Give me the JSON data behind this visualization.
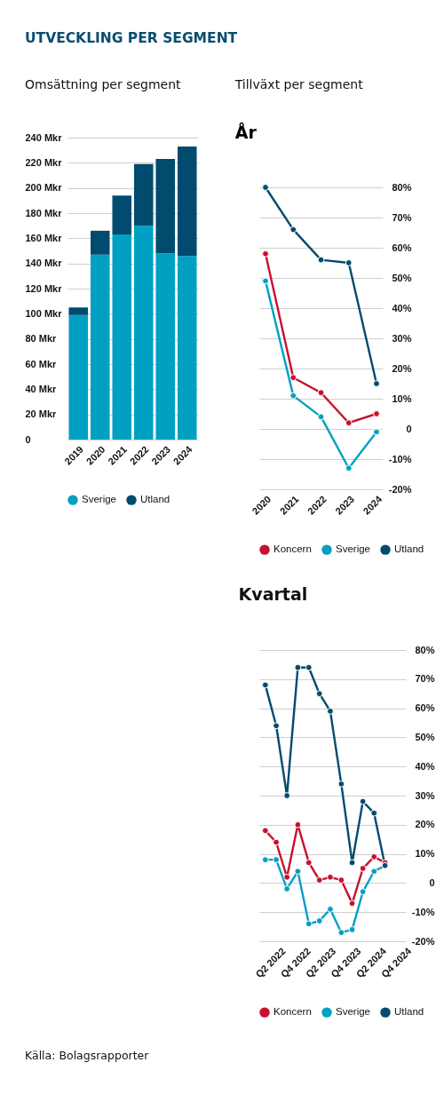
{
  "chart_data": [
    {
      "type": "bar",
      "title": "UTVECKLING PER SEGMENT",
      "subtitle": "Omsättning per segment",
      "categories": [
        "2019",
        "2020",
        "2021",
        "2022",
        "2023",
        "2024"
      ],
      "series": [
        {
          "name": "Sverige",
          "color": "#00a0c3",
          "values": [
            99,
            147,
            163,
            170,
            148,
            146
          ]
        },
        {
          "name": "Utland",
          "color": "#004b6e",
          "values": [
            6,
            19,
            31,
            49,
            75,
            87
          ]
        }
      ],
      "stacked": true,
      "ylim": [
        0,
        240
      ],
      "yticks": [
        0,
        {
          "value": 20,
          "label": "20 Mkr"
        },
        {
          "value": 40,
          "label": "40 Mkr"
        },
        {
          "value": 60,
          "label": "60 Mkr"
        },
        {
          "value": 80,
          "label": "80 Mkr"
        },
        {
          "value": 100,
          "label": "100 Mkr"
        },
        {
          "value": 120,
          "label": "120 Mkr"
        },
        {
          "value": 140,
          "label": "140 Mkr"
        },
        {
          "value": 160,
          "label": "160 Mkr"
        },
        {
          "value": 180,
          "label": "180 Mkr"
        },
        {
          "value": 200,
          "label": "200 Mkr"
        },
        {
          "value": 220,
          "label": "220 Mkr"
        },
        {
          "value": 240,
          "label": "240 Mkr"
        }
      ],
      "grid": "y",
      "legend": "bottom",
      "annotations": [
        "Källa: Bolagsrapporter"
      ]
    },
    {
      "type": "line",
      "title": "Tillväxt per segment",
      "subtitle": "År",
      "categories": [
        "2020",
        "2021",
        "2022",
        "2023",
        "2024"
      ],
      "series": [
        {
          "name": "Koncern",
          "color": "#c8102e",
          "values": [
            58,
            17,
            12,
            2,
            5
          ]
        },
        {
          "name": "Sverige",
          "color": "#00a0c3",
          "values": [
            49,
            11,
            4,
            -13,
            -1
          ]
        },
        {
          "name": "Utland",
          "color": "#004b6e",
          "values": [
            80,
            66,
            56,
            55,
            15
          ]
        }
      ],
      "ylim": [
        -20,
        80
      ],
      "yticks": [
        {
          "value": -20,
          "label": "-20%"
        },
        {
          "value": -10,
          "label": "-10%"
        },
        0,
        {
          "value": 10,
          "label": "10%"
        },
        {
          "value": 20,
          "label": "20%"
        },
        {
          "value": 30,
          "label": "30%"
        },
        {
          "value": 40,
          "label": "40%"
        },
        {
          "value": 50,
          "label": "50%"
        },
        {
          "value": 60,
          "label": "60%"
        },
        {
          "value": 70,
          "label": "70%"
        },
        {
          "value": 80,
          "label": "80%"
        }
      ],
      "grid": "y",
      "legend": "bottom",
      "marker": "circle",
      "line_style": "solid"
    },
    {
      "type": "line",
      "title": "Kvartal",
      "x": [
        "2021-12-15",
        "2022-03-04",
        "2022-05-21",
        "2022-08-08",
        "2022-10-27",
        "2023-01-12",
        "2023-04-01",
        "2023-06-20",
        "2023-09-07",
        "2023-11-24",
        "2024-02-13",
        "2024-05-03"
      ],
      "xlim": [
        "2021-11-01",
        "2024-10-01"
      ],
      "xticks": [
        {
          "value": "2022-04-01",
          "label": "Q2 2022"
        },
        {
          "value": "2022-10-01",
          "label": "Q4 2022"
        },
        {
          "value": "2023-04-01",
          "label": "Q2 2023"
        },
        {
          "value": "2023-10-01",
          "label": "Q4 2023"
        },
        {
          "value": "2024-04-01",
          "label": "Q2 2024"
        },
        {
          "value": "2024-10-01",
          "label": "Q4 2024"
        }
      ],
      "series": [
        {
          "name": "Koncern",
          "color": "#c8102e",
          "values": [
            18,
            14,
            2,
            20,
            7,
            1,
            2,
            1,
            -7,
            5,
            9,
            7
          ]
        },
        {
          "name": "Sverige",
          "color": "#00a0c3",
          "values": [
            8,
            8,
            -2,
            4,
            -14,
            -13,
            -9,
            -17,
            -16,
            -3,
            4,
            6
          ]
        },
        {
          "name": "Utland",
          "color": "#004b6e",
          "values": [
            68,
            54,
            30,
            74,
            74,
            65,
            59,
            34,
            7,
            28,
            24,
            6
          ]
        }
      ],
      "ylim": [
        -20,
        80
      ],
      "yticks": [
        {
          "value": -20,
          "label": "-20%"
        },
        {
          "value": -10,
          "label": "-10%"
        },
        0,
        {
          "value": 10,
          "label": "10%"
        },
        {
          "value": 20,
          "label": "20%"
        },
        {
          "value": 30,
          "label": "30%"
        },
        {
          "value": 40,
          "label": "40%"
        },
        {
          "value": 50,
          "label": "50%"
        },
        {
          "value": 60,
          "label": "60%"
        },
        {
          "value": 70,
          "label": "70%"
        },
        {
          "value": 80,
          "label": "80%"
        }
      ],
      "grid": "y",
      "legend": "bottom",
      "marker": "circle",
      "line_style": "solid"
    }
  ]
}
